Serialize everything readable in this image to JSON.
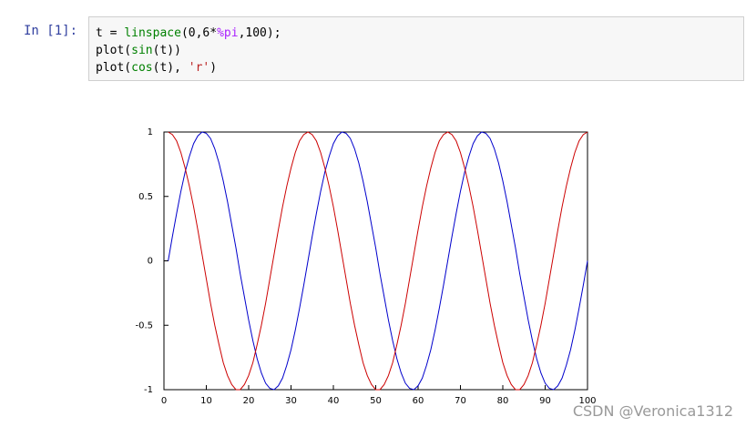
{
  "notebook": {
    "prompt": "In [1]:",
    "code": [
      [
        "t = ",
        "linspace",
        "(0,6*",
        "%pi",
        ",100);"
      ],
      [
        "plot(",
        "sin",
        "(t))"
      ],
      [
        "plot(",
        "cos",
        "(t), ",
        "'r'",
        ")"
      ]
    ],
    "watermark": "CSDN @Veronica1312"
  },
  "chart_data": {
    "type": "line",
    "x": [
      1,
      2,
      3,
      4,
      5,
      6,
      7,
      8,
      9,
      10,
      11,
      12,
      13,
      14,
      15,
      16,
      17,
      18,
      19,
      20,
      21,
      22,
      23,
      24,
      25,
      26,
      27,
      28,
      29,
      30,
      31,
      32,
      33,
      34,
      35,
      36,
      37,
      38,
      39,
      40,
      41,
      42,
      43,
      44,
      45,
      46,
      47,
      48,
      49,
      50,
      51,
      52,
      53,
      54,
      55,
      56,
      57,
      58,
      59,
      60,
      61,
      62,
      63,
      64,
      65,
      66,
      67,
      68,
      69,
      70,
      71,
      72,
      73,
      74,
      75,
      76,
      77,
      78,
      79,
      80,
      81,
      82,
      83,
      84,
      85,
      86,
      87,
      88,
      89,
      90,
      91,
      92,
      93,
      94,
      95,
      96,
      97,
      98,
      99,
      100
    ],
    "series": [
      {
        "name": "sin(t)",
        "color": "#0000cc",
        "values": [
          0,
          0.19,
          0.37,
          0.54,
          0.69,
          0.81,
          0.91,
          0.97,
          1,
          0.99,
          0.95,
          0.87,
          0.76,
          0.62,
          0.46,
          0.28,
          0.1,
          -0.1,
          -0.28,
          -0.46,
          -0.62,
          -0.76,
          -0.87,
          -0.95,
          -0.99,
          -1,
          -0.97,
          -0.91,
          -0.81,
          -0.69,
          -0.54,
          -0.37,
          -0.19,
          0,
          0.19,
          0.37,
          0.54,
          0.69,
          0.81,
          0.91,
          0.97,
          1,
          0.99,
          0.95,
          0.87,
          0.76,
          0.62,
          0.46,
          0.28,
          0.1,
          -0.1,
          -0.28,
          -0.46,
          -0.62,
          -0.76,
          -0.87,
          -0.95,
          -0.99,
          -1,
          -0.97,
          -0.91,
          -0.81,
          -0.69,
          -0.54,
          -0.37,
          -0.19,
          0,
          0.19,
          0.37,
          0.54,
          0.69,
          0.81,
          0.91,
          0.97,
          1,
          0.99,
          0.95,
          0.87,
          0.76,
          0.62,
          0.46,
          0.28,
          0.1,
          -0.1,
          -0.28,
          -0.46,
          -0.62,
          -0.76,
          -0.87,
          -0.95,
          -0.99,
          -1,
          -0.97,
          -0.91,
          -0.81,
          -0.69,
          -0.54,
          -0.37,
          -0.19,
          0
        ]
      },
      {
        "name": "cos(t)",
        "color": "#cc0000",
        "values": [
          1,
          0.98,
          0.93,
          0.84,
          0.72,
          0.58,
          0.42,
          0.24,
          0.05,
          -0.14,
          -0.33,
          -0.5,
          -0.65,
          -0.79,
          -0.89,
          -0.96,
          -1,
          -1,
          -0.96,
          -0.89,
          -0.79,
          -0.65,
          -0.5,
          -0.33,
          -0.14,
          0.05,
          0.24,
          0.42,
          0.58,
          0.72,
          0.84,
          0.93,
          0.98,
          1,
          0.98,
          0.93,
          0.84,
          0.72,
          0.58,
          0.42,
          0.24,
          0.05,
          -0.14,
          -0.33,
          -0.5,
          -0.65,
          -0.79,
          -0.89,
          -0.96,
          -1,
          -1,
          -0.96,
          -0.89,
          -0.79,
          -0.65,
          -0.5,
          -0.33,
          -0.14,
          0.05,
          0.24,
          0.42,
          0.58,
          0.72,
          0.84,
          0.93,
          0.98,
          1,
          0.98,
          0.93,
          0.84,
          0.72,
          0.58,
          0.42,
          0.24,
          0.05,
          -0.14,
          -0.33,
          -0.5,
          -0.65,
          -0.79,
          -0.89,
          -0.96,
          -1,
          -1,
          -0.96,
          -0.89,
          -0.79,
          -0.65,
          -0.5,
          -0.33,
          -0.14,
          0.05,
          0.24,
          0.42,
          0.58,
          0.72,
          0.84,
          0.93,
          0.98,
          1
        ]
      }
    ],
    "xlim": [
      0,
      100
    ],
    "ylim": [
      -1,
      1
    ],
    "xticks": [
      0,
      10,
      20,
      30,
      40,
      50,
      60,
      70,
      80,
      90,
      100
    ],
    "yticks": [
      -1,
      -0.5,
      0,
      0.5,
      1
    ]
  }
}
